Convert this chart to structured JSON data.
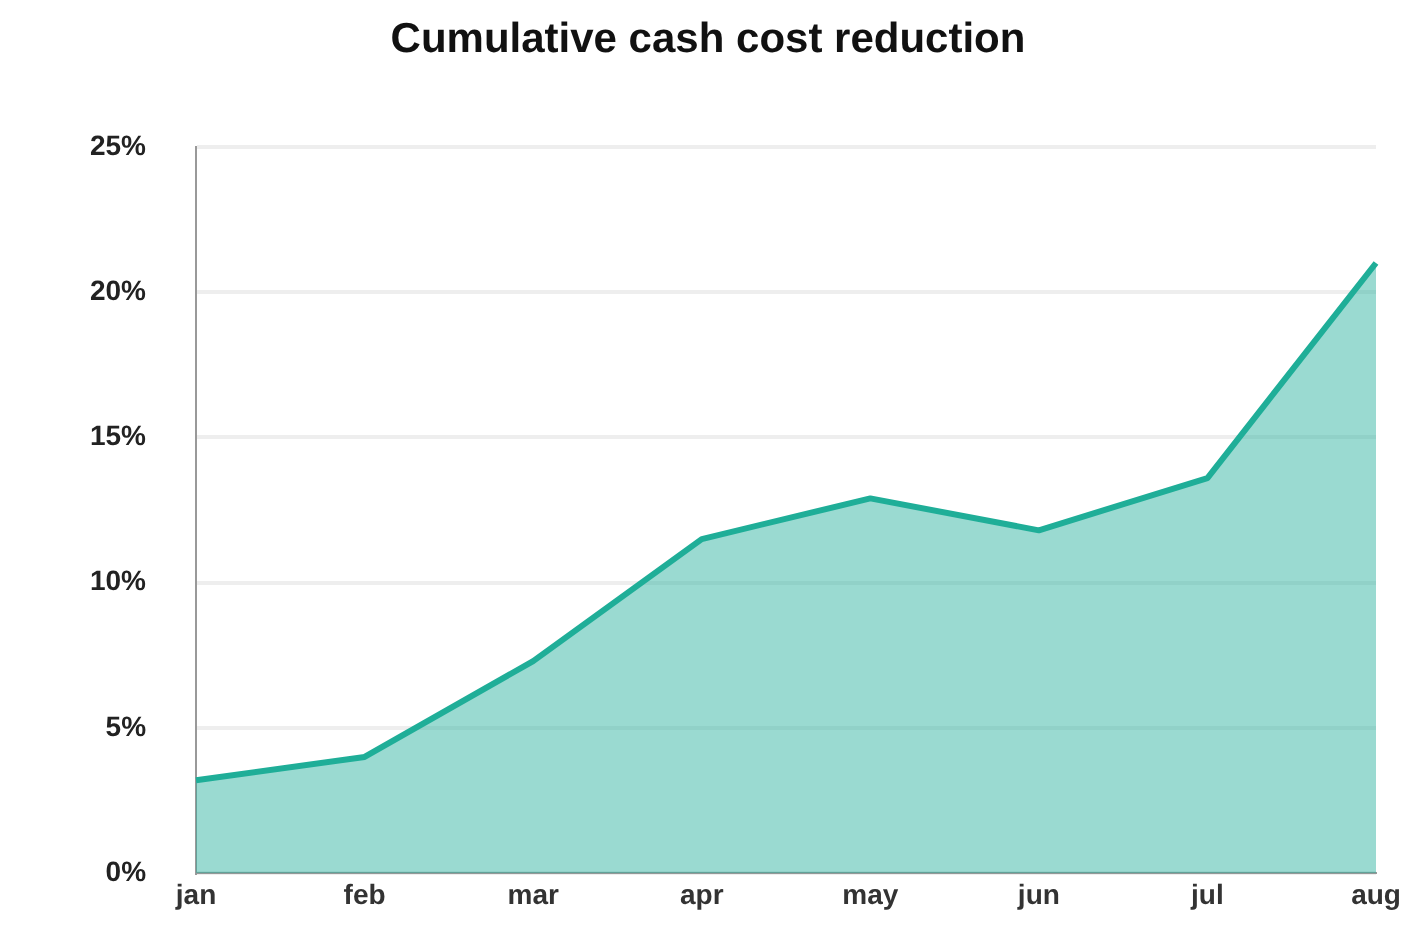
{
  "chart_data": {
    "type": "area",
    "title": "Cumulative cash cost reduction",
    "categories": [
      "jan",
      "feb",
      "mar",
      "apr",
      "may",
      "jun",
      "jul",
      "aug"
    ],
    "series": [
      {
        "color": "#1fae98",
        "values": [
          3.2,
          4.0,
          7.3,
          11.5,
          12.9,
          11.8,
          13.6,
          21.0
        ]
      }
    ],
    "ylim": [
      0,
      25
    ],
    "yticks": [
      {
        "value": 0,
        "label": "0%"
      },
      {
        "value": 5,
        "label": "5%"
      },
      {
        "value": 10,
        "label": "10%"
      },
      {
        "value": 15,
        "label": "15%"
      },
      {
        "value": 20,
        "label": "20%"
      },
      {
        "value": 25,
        "label": "25%"
      }
    ],
    "grid": "y",
    "legend": false,
    "marker": "none"
  }
}
